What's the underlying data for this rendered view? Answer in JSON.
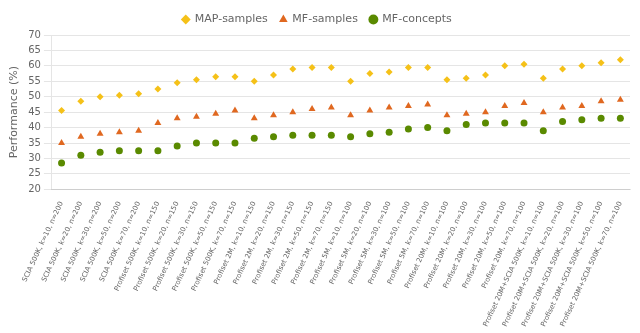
{
  "chart_data": {
    "type": "scatter",
    "ylabel": "Performance (%)",
    "categories": [
      "SCIA 500K, k=10, n=200",
      "SCIA 500K, k=20, n=200",
      "SCIA 500K, k=30, n=200",
      "SCIA 500K, k=50, n=200",
      "SCIA 500K, k=70, n=200",
      "Profiset 500K, k=10, n=150",
      "Profiset 500K, k=20, n=150",
      "Profiset 500K, k=30, n=150",
      "Profiset 500K, k=50, n=150",
      "Profiset 500K, k=70, n=150",
      "Profiset 2M, k=10, n=150",
      "Profiset 2M, k=20, n=150",
      "Profiset 2M, k=30, n=150",
      "Profiset 2M, k=50, n=150",
      "Profiset 2M, k=70, n=150",
      "Profiset 5M, k=10, n=100",
      "Profiset 5M, k=20, n=100",
      "Profiset 5M, k=30, n=100",
      "Profiset 5M, k=50, n=100",
      "Profiset 5M, k=70, n=100",
      "Profiset 20M, k=10, n=100",
      "Profiset 20M, k=20, n=100",
      "Profiset 20M, k=30, n=100",
      "Profiset 20M, k=50, n=100",
      "Profiset 20M, k=70, n=100",
      "Profiset 20M+SCIA 500K, k=10, n=100",
      "Profiset 20M+SCIA 500K, k=20, n=100",
      "Profiset 20M+SCIA 500K, k=30, n=100",
      "Profiset 20M+SCIA 500K, k=50, n=100",
      "Profiset 20M+SCIA 500K, k=70, n=100"
    ],
    "series": [
      {
        "name": "MAP-samples",
        "color": "#F5C118",
        "marker": "diamond",
        "values": [
          45.5,
          48.5,
          50.0,
          50.5,
          51.0,
          52.5,
          54.5,
          55.5,
          56.5,
          56.5,
          55.0,
          57.0,
          59.0,
          59.5,
          59.5,
          55.0,
          57.5,
          58.0,
          59.5,
          59.5,
          55.5,
          56.0,
          57.0,
          60.0,
          60.5,
          56.0,
          59.0,
          60.0,
          61.0,
          62.0
        ]
      },
      {
        "name": "MF-samples",
        "color": "#E06820",
        "marker": "triangle",
        "values": [
          35.0,
          37.0,
          38.0,
          38.5,
          39.0,
          41.5,
          43.0,
          43.5,
          44.5,
          45.5,
          43.0,
          44.0,
          45.0,
          46.0,
          46.5,
          44.0,
          45.5,
          46.5,
          47.0,
          47.5,
          44.0,
          44.5,
          45.0,
          47.0,
          48.0,
          45.0,
          46.5,
          47.0,
          48.5,
          49.0
        ]
      },
      {
        "name": "MF-concepts",
        "color": "#5A8A00",
        "marker": "circle",
        "values": [
          28.5,
          31.0,
          32.0,
          32.5,
          32.5,
          32.5,
          34.0,
          35.0,
          35.0,
          35.0,
          36.5,
          37.0,
          37.5,
          37.5,
          37.5,
          37.0,
          38.0,
          38.5,
          39.5,
          40.0,
          39.0,
          41.0,
          41.5,
          41.5,
          41.5,
          39.0,
          42.0,
          42.5,
          43.0,
          43.0
        ]
      }
    ],
    "ylim": [
      20,
      70
    ],
    "yticks": [
      20,
      25,
      30,
      35,
      40,
      45,
      50,
      55,
      60,
      65,
      70
    ],
    "grid": true,
    "legend": "top"
  }
}
